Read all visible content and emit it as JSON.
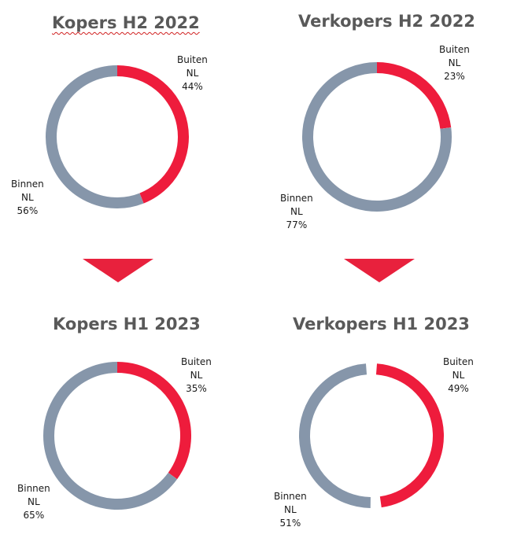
{
  "colors": {
    "outside": "#ee1c3c",
    "inside": "#8696aa",
    "arrow": "#e8213d",
    "title": "#595959"
  },
  "chart_data": [
    {
      "type": "pie",
      "title": "Kopers H2 2022",
      "slices": [
        {
          "label_line1": "Buiten",
          "label_line2": "NL",
          "value": 44,
          "pct": "44%"
        },
        {
          "label_line1": "Binnen",
          "label_line2": "NL",
          "value": 56,
          "pct": "56%"
        }
      ]
    },
    {
      "type": "pie",
      "title": "Verkopers H2 2022",
      "slices": [
        {
          "label_line1": "Buiten",
          "label_line2": "NL",
          "value": 23,
          "pct": "23%"
        },
        {
          "label_line1": "Binnen",
          "label_line2": "NL",
          "value": 77,
          "pct": "77%"
        }
      ]
    },
    {
      "type": "pie",
      "title": "Kopers H1 2023",
      "slices": [
        {
          "label_line1": "Buiten",
          "label_line2": "NL",
          "value": 35,
          "pct": "35%"
        },
        {
          "label_line1": "Binnen",
          "label_line2": "NL",
          "value": 65,
          "pct": "65%"
        }
      ]
    },
    {
      "type": "pie",
      "title": "Verkopers H1 2023",
      "slices": [
        {
          "label_line1": "Buiten",
          "label_line2": "NL",
          "value": 49,
          "pct": "49%"
        },
        {
          "label_line1": "Binnen",
          "label_line2": "NL",
          "value": 51,
          "pct": "51%"
        }
      ]
    }
  ]
}
